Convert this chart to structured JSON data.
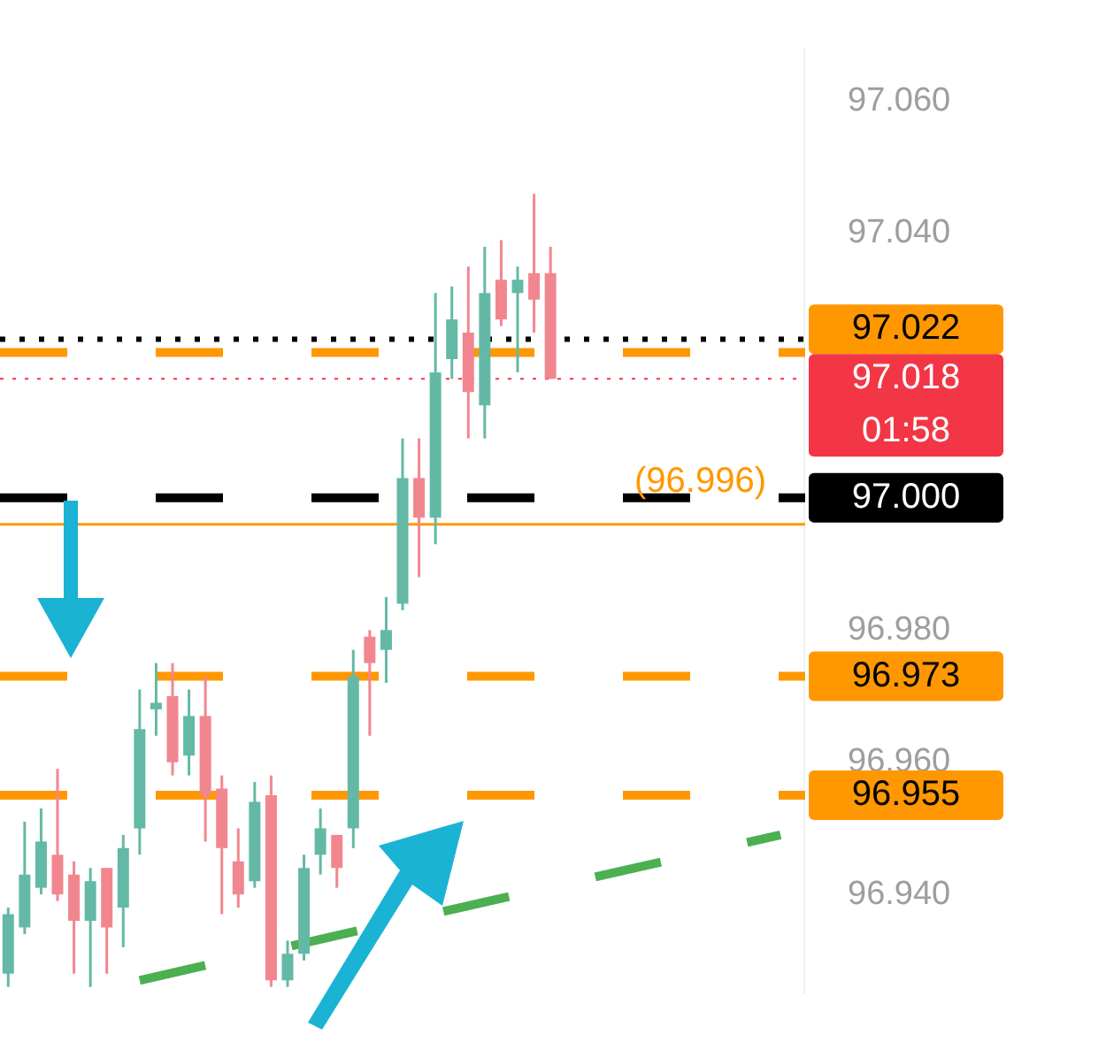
{
  "chart_data": {
    "type": "candlestick",
    "categories": [
      null,
      null,
      null,
      null,
      null,
      null,
      null,
      null,
      null,
      null,
      null,
      null,
      null,
      null,
      null,
      null,
      null,
      null,
      null,
      null,
      null,
      null,
      null,
      null,
      null,
      null,
      null,
      null,
      null,
      null,
      null,
      null,
      null,
      null,
      null,
      null,
      null,
      null,
      null,
      null,
      null,
      null,
      null,
      null,
      null,
      null,
      null,
      null,
      null
    ],
    "ohlc": [
      [
        96.928,
        96.938,
        96.926,
        96.937
      ],
      [
        96.935,
        96.951,
        96.934,
        96.943
      ],
      [
        96.941,
        96.953,
        96.94,
        96.948
      ],
      [
        96.946,
        96.959,
        96.939,
        96.94
      ],
      [
        96.943,
        96.945,
        96.928,
        96.936
      ],
      [
        96.936,
        96.944,
        96.926,
        96.942
      ],
      [
        96.944,
        96.944,
        96.928,
        96.935
      ],
      [
        96.938,
        96.949,
        96.932,
        96.947
      ],
      [
        96.95,
        96.971,
        96.946,
        96.965
      ],
      [
        96.968,
        96.975,
        96.964,
        96.969
      ],
      [
        96.97,
        96.975,
        96.958,
        96.96
      ],
      [
        96.961,
        96.971,
        96.958,
        96.967
      ],
      [
        96.967,
        96.973,
        96.948,
        96.955
      ],
      [
        96.956,
        96.958,
        96.937,
        96.947
      ],
      [
        96.945,
        96.95,
        96.938,
        96.94
      ],
      [
        96.942,
        96.957,
        96.941,
        96.954
      ],
      [
        96.955,
        96.958,
        96.926,
        96.927
      ],
      [
        96.927,
        96.933,
        96.926,
        96.931
      ],
      [
        96.931,
        96.946,
        96.93,
        96.944
      ],
      [
        96.946,
        96.953,
        96.943,
        96.95
      ],
      [
        96.949,
        96.949,
        96.941,
        96.944
      ],
      [
        96.95,
        96.977,
        96.947,
        96.973
      ],
      [
        96.979,
        96.98,
        96.964,
        96.975
      ],
      [
        96.977,
        96.985,
        96.972,
        96.98
      ],
      [
        96.984,
        97.009,
        96.983,
        97.003
      ],
      [
        97.003,
        97.009,
        96.988,
        96.997
      ],
      [
        96.997,
        97.031,
        96.993,
        97.019
      ],
      [
        97.021,
        97.032,
        97.018,
        97.027
      ],
      [
        97.025,
        97.035,
        97.009,
        97.016
      ],
      [
        97.014,
        97.038,
        97.009,
        97.031
      ],
      [
        97.033,
        97.039,
        97.026,
        97.027
      ],
      [
        97.031,
        97.035,
        97.019,
        97.033
      ],
      [
        97.034,
        97.046,
        97.025,
        97.03
      ],
      [
        97.034,
        97.038,
        97.018,
        97.018
      ],
      null,
      null,
      null,
      null,
      null,
      null,
      null,
      null,
      null,
      null,
      null,
      null,
      null,
      null,
      null
    ],
    "colors": [
      "#63b9a5",
      "#63b9a5",
      "#63b9a5",
      "#f2868f",
      "#f2868f",
      "#63b9a5",
      "#f2868f",
      "#63b9a5",
      "#63b9a5",
      "#63b9a5",
      "#f2868f",
      "#63b9a5",
      "#f2868f",
      "#f2868f",
      "#f2868f",
      "#63b9a5",
      "#f2868f",
      "#63b9a5",
      "#63b9a5",
      "#63b9a5",
      "#f2868f",
      "#63b9a5",
      "#f2868f",
      "#63b9a5",
      "#63b9a5",
      "#f2868f",
      "#63b9a5",
      "#63b9a5",
      "#f2868f",
      "#63b9a5",
      "#f2868f",
      "#63b9a5",
      "#f2868f",
      "#f2868f",
      null,
      null,
      null,
      null,
      null,
      null,
      null,
      null,
      null,
      null,
      null,
      null,
      null,
      null,
      null
    ],
    "series": [
      {
        "type": "line",
        "color": "#4caf50",
        "line_style": "dashed",
        "values": [
          null,
          null,
          null,
          null,
          null,
          null,
          null,
          null,
          96.927,
          null,
          null,
          null,
          null,
          null,
          null,
          null,
          null,
          null,
          null,
          null,
          null,
          null,
          null,
          null,
          null,
          null,
          null,
          null,
          null,
          null,
          null,
          null,
          null,
          null,
          null,
          null,
          null,
          null,
          null,
          null,
          null,
          null,
          null,
          null,
          null,
          null,
          null,
          96.949,
          null
        ]
      }
    ],
    "ylim": [
      96.925,
      97.068
    ],
    "yticks": [
      {
        "value": 96.94,
        "label": "96.940"
      },
      {
        "value": 96.96,
        "label": "96.960"
      },
      {
        "value": 96.98,
        "label": "96.980"
      },
      {
        "value": 97.04,
        "label": "97.040"
      },
      {
        "value": 97.06,
        "label": "97.060"
      }
    ],
    "tick_labels": "y",
    "grid": false,
    "legend": false,
    "ref_lines": [
      {
        "axis": "y",
        "value": 97.024,
        "color": "#000000",
        "line_style": "dotted"
      },
      {
        "axis": "y",
        "value": 97.022,
        "label": "97.022",
        "color": "#ff9800",
        "line_style": "dashed"
      },
      {
        "axis": "y",
        "value": 97.018,
        "label": "97.018",
        "color": "#f23645",
        "line_style": "dotted"
      },
      {
        "axis": "y",
        "value": 97.0,
        "label": "97.000",
        "color": "#000000",
        "line_style": "dashed"
      },
      {
        "axis": "y",
        "value": 96.996,
        "label": "(96.996)",
        "color": "#ff9800",
        "line_style": "solid"
      },
      {
        "axis": "y",
        "value": 96.973,
        "label": "96.973",
        "color": "#ff9800",
        "line_style": "dashed"
      },
      {
        "axis": "y",
        "value": 96.955,
        "label": "96.955",
        "color": "#ff9800",
        "line_style": "dashed"
      }
    ],
    "annotations": [
      "01:58"
    ]
  }
}
